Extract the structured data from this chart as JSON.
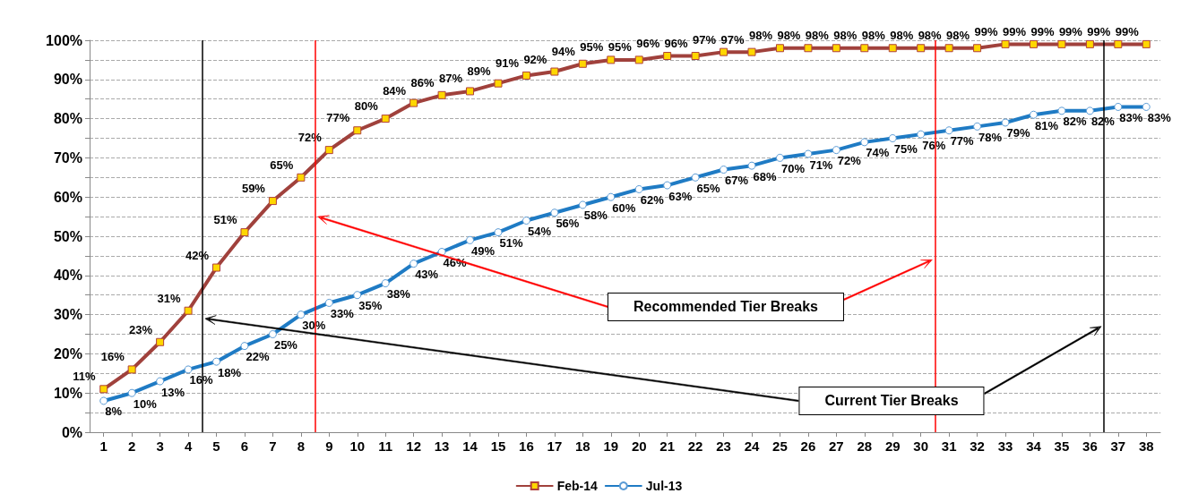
{
  "chart_data": {
    "type": "line",
    "x": [
      1,
      2,
      3,
      4,
      5,
      6,
      7,
      8,
      9,
      10,
      11,
      12,
      13,
      14,
      15,
      16,
      17,
      18,
      19,
      20,
      21,
      22,
      23,
      24,
      25,
      26,
      27,
      28,
      29,
      30,
      31,
      32,
      33,
      34,
      35,
      36,
      37,
      38
    ],
    "xlim": [
      0.5,
      38.5
    ],
    "xticks": [
      1,
      2,
      3,
      4,
      5,
      6,
      7,
      8,
      9,
      10,
      11,
      12,
      13,
      14,
      15,
      16,
      17,
      18,
      19,
      20,
      21,
      22,
      23,
      24,
      25,
      26,
      27,
      28,
      29,
      30,
      31,
      32,
      33,
      34,
      35,
      36,
      37,
      38
    ],
    "ylim": [
      0,
      100
    ],
    "yticks": [
      {
        "value": 0,
        "label": "0%"
      },
      {
        "value": 5,
        "label": null
      },
      {
        "value": 10,
        "label": "10%"
      },
      {
        "value": 15,
        "label": null
      },
      {
        "value": 20,
        "label": "20%"
      },
      {
        "value": 25,
        "label": null
      },
      {
        "value": 30,
        "label": "30%"
      },
      {
        "value": 35,
        "label": null
      },
      {
        "value": 40,
        "label": "40%"
      },
      {
        "value": 45,
        "label": null
      },
      {
        "value": 50,
        "label": "50%"
      },
      {
        "value": 55,
        "label": null
      },
      {
        "value": 60,
        "label": "60%"
      },
      {
        "value": 65,
        "label": null
      },
      {
        "value": 70,
        "label": "70%"
      },
      {
        "value": 75,
        "label": null
      },
      {
        "value": 80,
        "label": "80%"
      },
      {
        "value": 85,
        "label": null
      },
      {
        "value": 90,
        "label": "90%"
      },
      {
        "value": 95,
        "label": null
      },
      {
        "value": 100,
        "label": "100%"
      }
    ],
    "grid": "y",
    "legend": "bottom",
    "line_style": "solid",
    "series": [
      {
        "name": "Feb-14",
        "color": "#a0413c",
        "marker": "square",
        "values": [
          11,
          16,
          23,
          31,
          42,
          51,
          59,
          65,
          72,
          77,
          80,
          84,
          86,
          87,
          89,
          91,
          92,
          94,
          95,
          95,
          96,
          96,
          97,
          97,
          98,
          98,
          98,
          98,
          98,
          98,
          98,
          98,
          99,
          99,
          99,
          99,
          99,
          99
        ],
        "value_labels": [
          "11%",
          "16%",
          "23%",
          "31%",
          "42%",
          "51%",
          "59%",
          "65%",
          "72%",
          "77%",
          "80%",
          "84%",
          "86%",
          "87%",
          "89%",
          "91%",
          "92%",
          "94%",
          "95%",
          "95%",
          "96%",
          "96%",
          "97%",
          "97%",
          "98%",
          "98%",
          "98%",
          "98%",
          "98%",
          "98%",
          "98%",
          "98%",
          "99%",
          "99%",
          "99%",
          "99%",
          "99%",
          "99%"
        ]
      },
      {
        "name": "Jul-13",
        "color": "#1f7bc4",
        "marker": "circle",
        "values": [
          8,
          10,
          13,
          16,
          18,
          22,
          25,
          30,
          33,
          35,
          38,
          43,
          46,
          49,
          51,
          54,
          56,
          58,
          60,
          62,
          63,
          65,
          67,
          68,
          70,
          71,
          72,
          74,
          75,
          76,
          77,
          78,
          79,
          81,
          82,
          82,
          83,
          83
        ],
        "value_labels": [
          "8%",
          "10%",
          "13%",
          "16%",
          "18%",
          "22%",
          "25%",
          "30%",
          "33%",
          "35%",
          "38%",
          "43%",
          "46%",
          "49%",
          "51%",
          "54%",
          "56%",
          "58%",
          "60%",
          "62%",
          "63%",
          "65%",
          "67%",
          "68%",
          "70%",
          "71%",
          "72%",
          "74%",
          "75%",
          "76%",
          "77%",
          "78%",
          "79%",
          "81%",
          "82%",
          "82%",
          "83%",
          "83%"
        ]
      }
    ],
    "ref_lines": [
      {
        "axis": "x",
        "value": 4.5,
        "color": "#000000"
      },
      {
        "axis": "x",
        "value": 8.5,
        "color": "#ff0000"
      },
      {
        "axis": "x",
        "value": 30.5,
        "color": "#ff0000"
      },
      {
        "axis": "x",
        "value": 36.5,
        "color": "#000000"
      }
    ],
    "annotations": [
      "Recommended Tier Breaks",
      "Current Tier Breaks"
    ]
  }
}
